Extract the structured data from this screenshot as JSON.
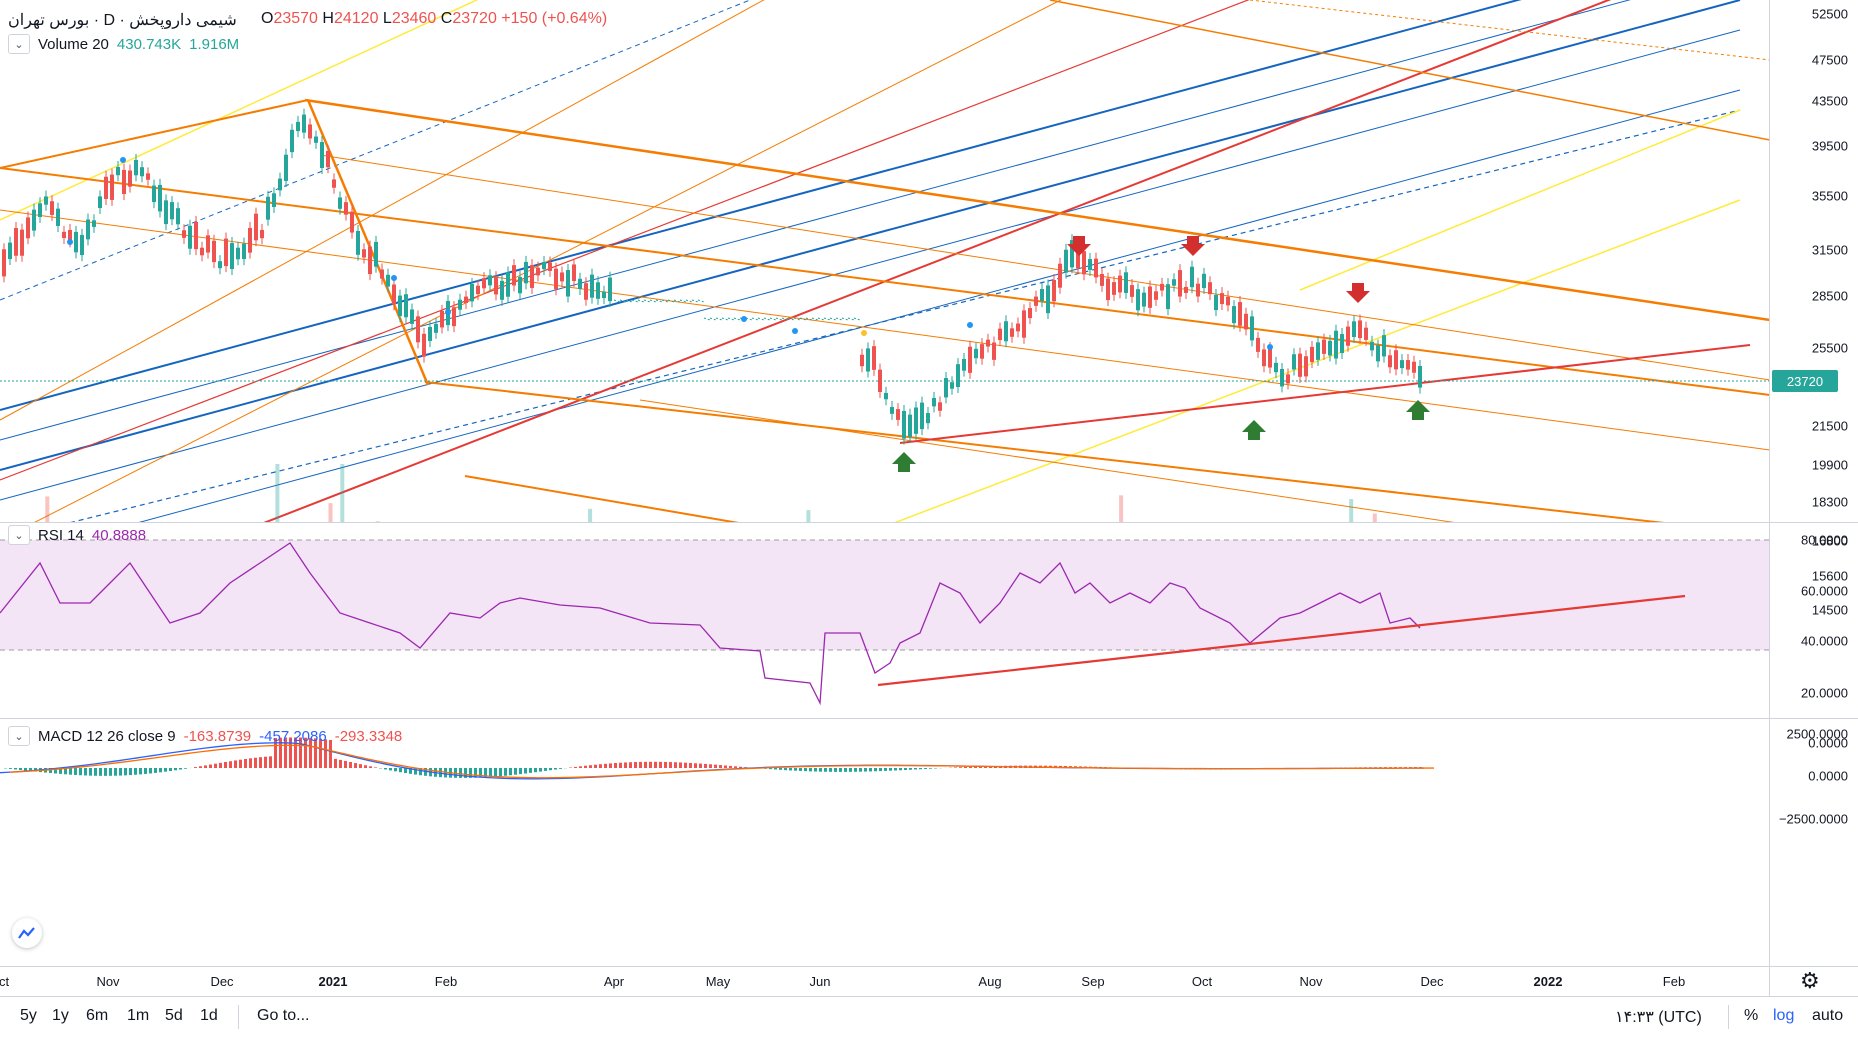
{
  "header": {
    "title": "شیمی داروپخش · D · بورس تهران",
    "ohlc": {
      "open_label": "O",
      "open": "23570",
      "high_label": "H",
      "high": "24120",
      "low_label": "L",
      "low": "23460",
      "close_label": "C",
      "close": "23720",
      "change": "+150 (+0.64%)"
    }
  },
  "volume_legend": {
    "name": "Volume 20",
    "v1": "430.743K",
    "v2": "1.916M"
  },
  "rsi_legend": {
    "name": "RSI 14",
    "value": "40.8888"
  },
  "macd_legend": {
    "name": "MACD 12 26 close 9",
    "v1": "-163.8739",
    "v2": "-457.2086",
    "v3": "-293.3348"
  },
  "price_axis": [
    "52500",
    "47500",
    "43500",
    "39500",
    "35500",
    "31500",
    "28500",
    "25500",
    "21500",
    "19900",
    "18300",
    "16800",
    "15600",
    "14500"
  ],
  "current_price": "23720",
  "rsi_axis": [
    "80.0000",
    "60.0000",
    "40.0000",
    "20.0000",
    "0.0000"
  ],
  "macd_axis": [
    "2500.0000",
    "0.0000",
    "−2500.0000"
  ],
  "time_axis": [
    "ct",
    "Nov",
    "Dec",
    "2021",
    "Feb",
    "Apr",
    "May",
    "Jun",
    "Aug",
    "Sep",
    "Oct",
    "Nov",
    "Dec",
    "2022",
    "Feb"
  ],
  "bottom_bar": {
    "ranges": [
      "5y",
      "1y",
      "6m",
      "1m",
      "5d",
      "1d"
    ],
    "goto": "Go to...",
    "clock": "۱۴:۳۳ (UTC)",
    "percent": "%",
    "log": "log",
    "auto": "auto"
  },
  "colors": {
    "up": "#26a69a",
    "down": "#ef5350",
    "rsi": "#9c27b0",
    "rsi_band": "#f3e5f5",
    "orange": "#f57c00",
    "red": "#e53935",
    "blue": "#1565c0",
    "yellow": "#ffeb3b",
    "macd": "#2962ff",
    "signal": "#ff6d00",
    "log_active": "#2962ff"
  },
  "icons": [
    "chevron-down-icon",
    "gear-icon",
    "tradingview-logo-icon",
    "arrow-down-icon",
    "arrow-up-icon"
  ]
}
